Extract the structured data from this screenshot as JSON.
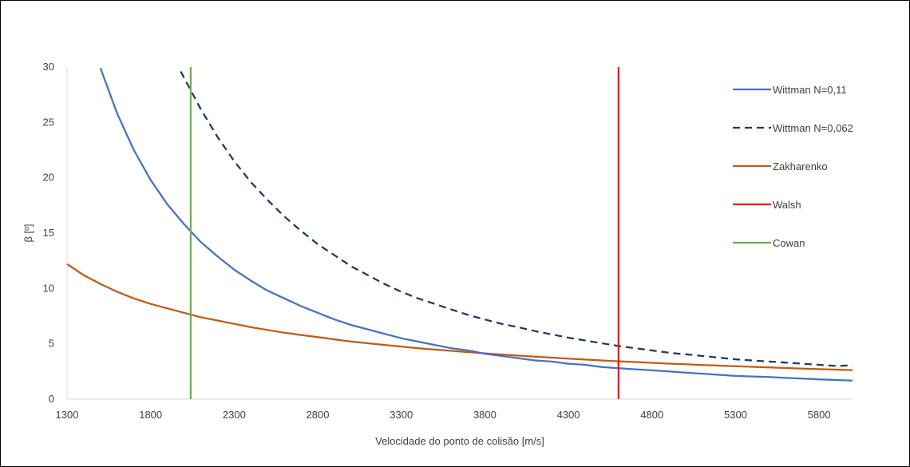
{
  "chart_data": {
    "type": "line",
    "xlabel": "Velocidade do ponto de colisão [m/s]",
    "ylabel": "β [º]",
    "xlim": [
      1300,
      6000
    ],
    "ylim": [
      0,
      30
    ],
    "xticks": [
      1300,
      1800,
      2300,
      2800,
      3300,
      3800,
      4300,
      4800,
      5300,
      5800
    ],
    "yticks": [
      0,
      5,
      10,
      15,
      20,
      25,
      30
    ],
    "grid": false,
    "legend_position": "right",
    "series": [
      {
        "name": "Wittman N=0,11",
        "color": "#4472c4",
        "dash": "solid",
        "x": [
          1500,
          1600,
          1700,
          1800,
          1900,
          2000,
          2100,
          2200,
          2300,
          2400,
          2500,
          2600,
          2700,
          2800,
          2900,
          3000,
          3100,
          3200,
          3300,
          3400,
          3500,
          3600,
          3700,
          3800,
          3900,
          4000,
          4100,
          4200,
          4300,
          4400,
          4500,
          4600,
          4700,
          4800,
          4900,
          5000,
          5100,
          5200,
          5300,
          5400,
          5500,
          5600,
          5700,
          5800,
          5900,
          6000
        ],
        "y": [
          29.9,
          25.8,
          22.5,
          19.8,
          17.6,
          15.8,
          14.2,
          12.9,
          11.7,
          10.7,
          9.8,
          9.1,
          8.4,
          7.8,
          7.2,
          6.7,
          6.3,
          5.9,
          5.5,
          5.2,
          4.9,
          4.6,
          4.4,
          4.1,
          3.9,
          3.7,
          3.5,
          3.4,
          3.2,
          3.1,
          2.9,
          2.8,
          2.7,
          2.6,
          2.5,
          2.4,
          2.3,
          2.2,
          2.1,
          2.05,
          2.0,
          1.92,
          1.85,
          1.79,
          1.73,
          1.67
        ]
      },
      {
        "name": "Wittman N=0,062",
        "color": "#203864",
        "dash": "dashed",
        "x": [
          1980,
          2100,
          2200,
          2300,
          2400,
          2500,
          2600,
          2700,
          2800,
          2900,
          3000,
          3100,
          3200,
          3300,
          3400,
          3500,
          3600,
          3700,
          3800,
          3900,
          4000,
          4100,
          4200,
          4300,
          4400,
          4500,
          4600,
          4700,
          4800,
          4900,
          5000,
          5100,
          5200,
          5300,
          5400,
          5500,
          5600,
          5700,
          5800,
          5900,
          6000
        ],
        "y": [
          29.6,
          26.2,
          23.7,
          21.5,
          19.6,
          18.0,
          16.5,
          15.2,
          14.0,
          13.0,
          12.0,
          11.2,
          10.4,
          9.7,
          9.1,
          8.6,
          8.1,
          7.6,
          7.2,
          6.8,
          6.5,
          6.15,
          5.85,
          5.55,
          5.3,
          5.05,
          4.8,
          4.6,
          4.4,
          4.2,
          4.05,
          3.9,
          3.75,
          3.6,
          3.5,
          3.4,
          3.3,
          3.2,
          3.1,
          3.0,
          3.05
        ]
      },
      {
        "name": "Zakharenko",
        "color": "#c55a11",
        "dash": "solid",
        "x": [
          1300,
          1400,
          1500,
          1600,
          1700,
          1800,
          1900,
          2000,
          2100,
          2200,
          2300,
          2400,
          2500,
          2600,
          2700,
          2800,
          2900,
          3000,
          3100,
          3200,
          3300,
          3400,
          3500,
          3600,
          3700,
          3800,
          3900,
          4000,
          4100,
          4200,
          4300,
          4400,
          4500,
          4600,
          4700,
          4800,
          4900,
          5000,
          5100,
          5200,
          5300,
          5400,
          5500,
          5600,
          5700,
          5800,
          5900,
          6000
        ],
        "y": [
          12.2,
          11.2,
          10.4,
          9.7,
          9.1,
          8.6,
          8.2,
          7.8,
          7.4,
          7.1,
          6.8,
          6.5,
          6.25,
          6.0,
          5.8,
          5.6,
          5.4,
          5.2,
          5.05,
          4.9,
          4.75,
          4.6,
          4.48,
          4.36,
          4.25,
          4.14,
          4.03,
          3.93,
          3.84,
          3.75,
          3.66,
          3.58,
          3.5,
          3.42,
          3.35,
          3.28,
          3.21,
          3.15,
          3.09,
          3.03,
          2.97,
          2.92,
          2.86,
          2.81,
          2.76,
          2.71,
          2.67,
          2.62
        ]
      },
      {
        "name": "Walsh",
        "color": "#ff0000",
        "dash": "solid",
        "x": [
          4600,
          4600
        ],
        "y": [
          0,
          30
        ]
      },
      {
        "name": "Cowan",
        "color": "#70ad47",
        "dash": "solid",
        "x": [
          2040,
          2040
        ],
        "y": [
          0,
          30
        ]
      }
    ]
  }
}
